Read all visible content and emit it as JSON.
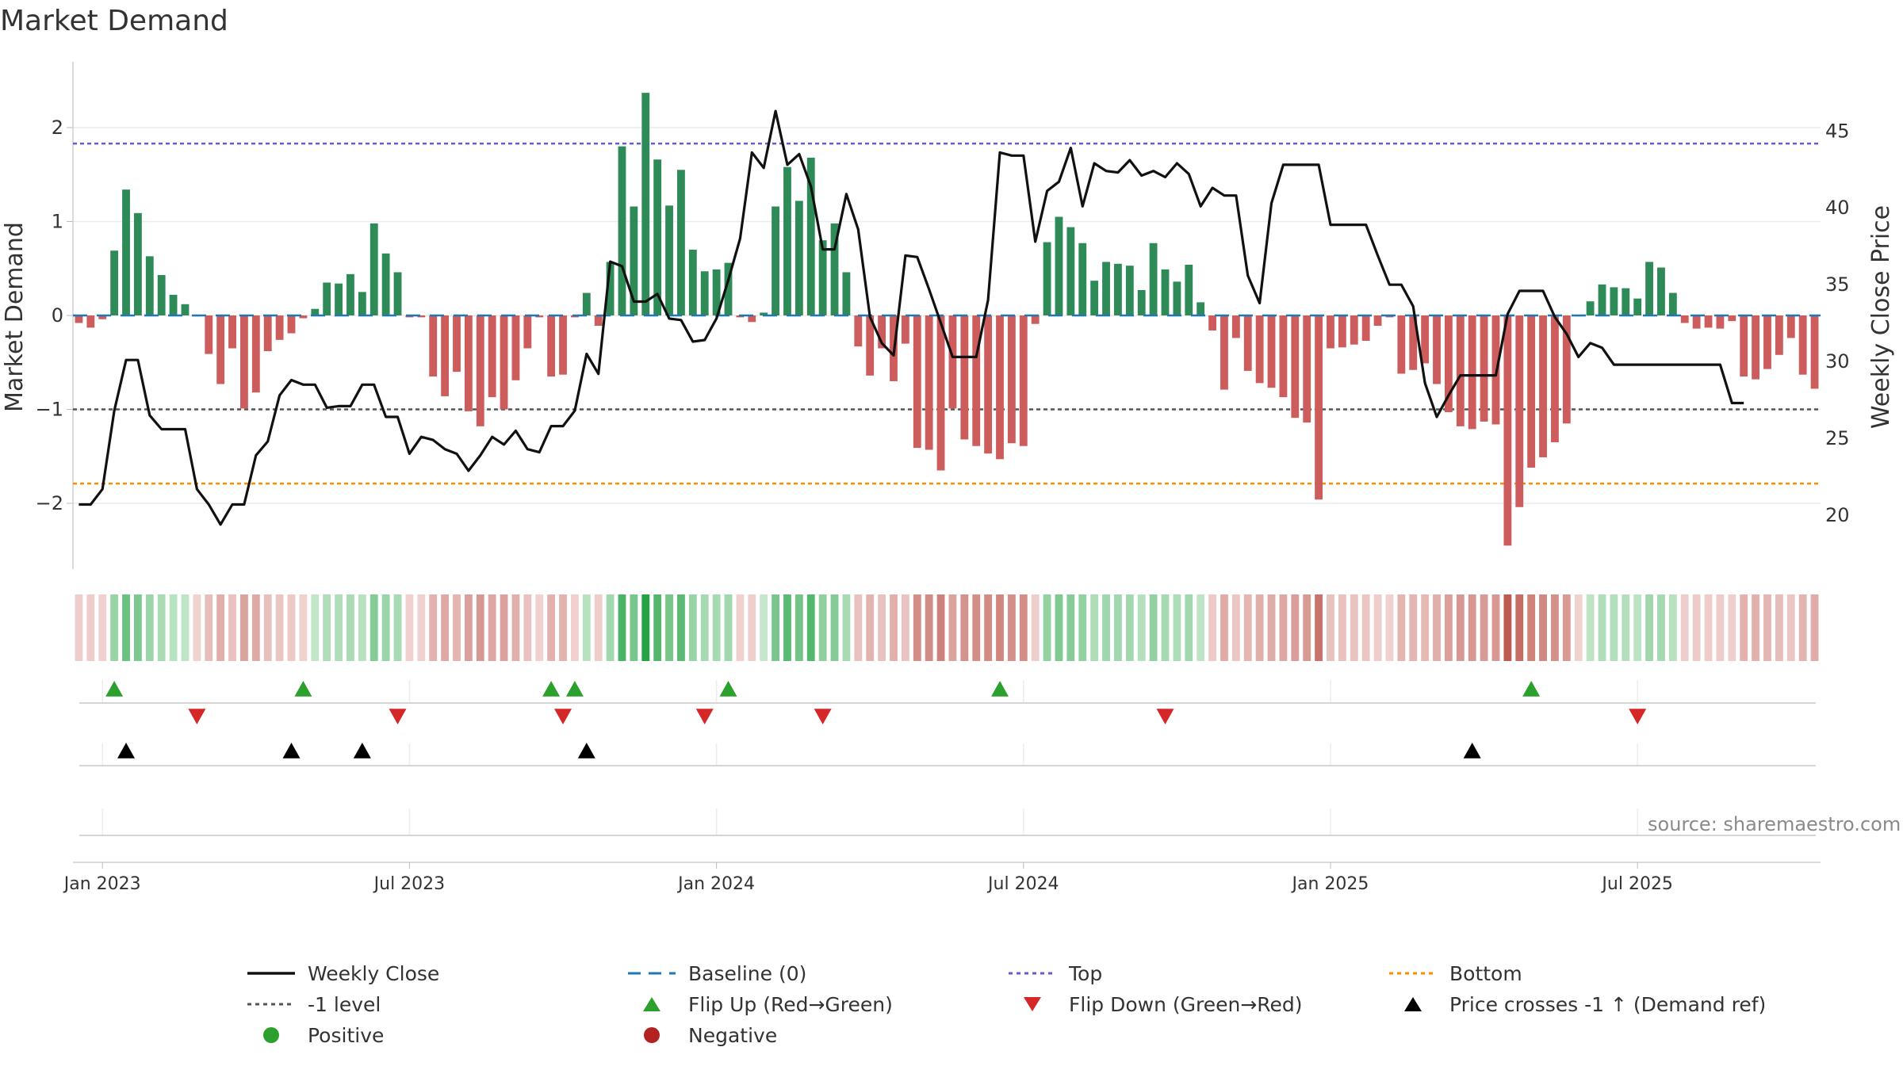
{
  "chart_data": {
    "type": "bar",
    "title": "Market Demand",
    "ylabel_left": "Market Demand",
    "ylabel_right": "Weekly Close Price",
    "ylim_left": [
      -2.7,
      2.7
    ],
    "yticks_left": [
      2,
      1,
      0,
      -1,
      -2
    ],
    "ytick_labels_left": [
      "2",
      "1",
      "0",
      "−1",
      "−2"
    ],
    "ylim_right": [
      16.5,
      49.5
    ],
    "yticks_right": [
      45,
      40,
      35,
      30,
      25,
      20
    ],
    "xtick_labels": [
      "Jan 2023",
      "Jul 2023",
      "Jan 2024",
      "Jul 2024",
      "Jan 2025",
      "Jul 2025"
    ],
    "xtick_weeks": [
      2,
      28,
      54,
      80,
      106,
      132
    ],
    "reference_lines": {
      "baseline": 0,
      "top": 1.83,
      "bottom": -1.79,
      "minus_one": -1
    },
    "series": [
      {
        "name": "Market Demand",
        "values": [
          -0.08,
          -0.13,
          -0.04,
          0.69,
          1.34,
          1.09,
          0.63,
          0.43,
          0.22,
          0.12,
          -0.01,
          -0.41,
          -0.73,
          -0.35,
          -0.99,
          -0.82,
          -0.38,
          -0.26,
          -0.19,
          -0.03,
          0.07,
          0.35,
          0.34,
          0.44,
          0.25,
          0.98,
          0.66,
          0.46,
          -0.02,
          -0.02,
          -0.65,
          -0.86,
          -0.6,
          -1.02,
          -1.18,
          -0.87,
          -1.0,
          -0.69,
          -0.35,
          -0.02,
          -0.65,
          -0.63,
          -0.02,
          0.24,
          -0.11,
          0.57,
          1.8,
          1.16,
          2.37,
          1.66,
          1.17,
          1.55,
          0.7,
          0.47,
          0.49,
          0.56,
          -0.02,
          -0.07,
          0.03,
          1.16,
          1.58,
          1.22,
          1.68,
          0.8,
          0.98,
          0.46,
          -0.33,
          -0.64,
          -0.35,
          -0.7,
          -0.3,
          -1.41,
          -1.43,
          -1.65,
          -0.99,
          -1.32,
          -1.39,
          -1.47,
          -1.53,
          -1.36,
          -1.39,
          -0.09,
          0.78,
          1.05,
          0.94,
          0.77,
          0.37,
          0.57,
          0.55,
          0.53,
          0.27,
          0.77,
          0.49,
          0.36,
          0.54,
          0.14,
          -0.16,
          -0.79,
          -0.24,
          -0.59,
          -0.72,
          -0.77,
          -0.87,
          -1.09,
          -1.14,
          -1.96,
          -0.35,
          -0.34,
          -0.31,
          -0.27,
          -0.11,
          -0.02,
          -0.62,
          -0.58,
          -0.51,
          -0.73,
          -1.03,
          -1.18,
          -1.21,
          -1.13,
          -1.16,
          -2.45,
          -2.04,
          -1.62,
          -1.51,
          -1.35,
          -1.15,
          -0.01,
          0.15,
          0.33,
          0.3,
          0.29,
          0.18,
          0.57,
          0.51,
          0.24,
          -0.08,
          -0.14,
          -0.13,
          -0.14,
          -0.06,
          -0.65,
          -0.68,
          -0.57,
          -0.42,
          -0.24,
          -0.63,
          -0.78
        ]
      },
      {
        "name": "Weekly Close",
        "values": [
          20.7,
          20.7,
          21.7,
          26.8,
          30.1,
          30.1,
          26.5,
          25.6,
          25.6,
          25.6,
          21.7,
          20.7,
          19.4,
          20.7,
          20.7,
          23.9,
          24.8,
          27.8,
          28.8,
          28.5,
          28.5,
          27.0,
          27.1,
          27.1,
          28.5,
          28.5,
          26.4,
          26.4,
          24.0,
          25.1,
          24.9,
          24.3,
          24.0,
          22.9,
          23.9,
          25.1,
          24.6,
          25.5,
          24.3,
          24.1,
          25.8,
          25.8,
          26.8,
          30.5,
          29.2,
          36.5,
          36.2,
          33.9,
          33.9,
          34.4,
          32.8,
          32.7,
          31.3,
          31.4,
          32.8,
          35.3,
          38.0,
          43.6,
          42.6,
          46.3,
          42.8,
          43.5,
          41.4,
          37.3,
          37.3,
          40.9,
          38.6,
          32.9,
          31.2,
          30.4,
          36.9,
          36.8,
          34.7,
          32.5,
          30.3,
          30.3,
          30.3,
          34.0,
          43.6,
          43.4,
          43.4,
          37.8,
          41.1,
          41.7,
          43.9,
          40.1,
          42.9,
          42.4,
          42.3,
          43.1,
          42.1,
          42.4,
          42.0,
          42.9,
          42.2,
          40.1,
          41.3,
          40.8,
          40.8,
          35.6,
          33.8,
          40.3,
          42.8,
          42.8,
          42.8,
          42.8,
          38.9,
          38.9,
          38.9,
          38.9,
          36.9,
          35.0,
          35.0,
          33.6,
          28.6,
          26.4,
          27.8,
          29.1,
          29.1,
          29.1,
          29.1,
          33.1,
          34.6,
          34.6,
          34.6,
          32.9,
          31.8,
          30.3,
          31.2,
          30.9,
          29.8,
          29.8,
          29.8,
          29.8,
          29.8,
          29.8,
          29.8,
          29.8,
          29.8,
          29.8,
          27.3,
          27.3
        ]
      }
    ],
    "flip_up_weeks": [
      3,
      19,
      40,
      42,
      55,
      78,
      123
    ],
    "flip_down_weeks": [
      10,
      27,
      41,
      53,
      63,
      92,
      132
    ],
    "price_cross_weeks": [
      4,
      18,
      24,
      43,
      118
    ],
    "legend": [
      "Weekly Close",
      "Baseline (0)",
      "Top",
      "Bottom",
      "-1 level",
      "Flip Up (Red→Green)",
      "Flip Down (Green→Red)",
      "Price crosses -1 ↑ (Demand ref)",
      "Positive",
      "Negative"
    ]
  },
  "source": "source: sharemaestro.com",
  "colors": {
    "positive": "#2e8b57",
    "negative": "#cd5c5c",
    "price_line": "#111111",
    "baseline": "#1f77b4",
    "top": "#6a5acd",
    "bottom": "#ff8c00",
    "minus_one": "#555555",
    "flip_up": "#2ca02c",
    "flip_down": "#d62728",
    "cross": "#000000",
    "legend_positive": "#2ca02c",
    "legend_negative": "#b22222"
  }
}
